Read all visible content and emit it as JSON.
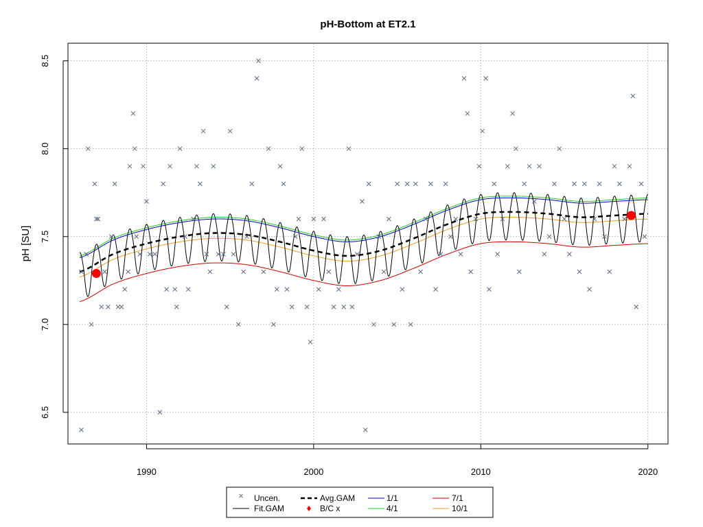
{
  "chart_data": {
    "type": "scatter",
    "title": "pH-Bottom at ET2.1",
    "xlabel": "",
    "ylabel": "pH [SU]",
    "xlim": [
      1985.3,
      2021.2
    ],
    "ylim": [
      6.32,
      8.6
    ],
    "x_ticks": [
      1990,
      2000,
      2010,
      2020
    ],
    "y_ticks": [
      6.5,
      7.0,
      7.5,
      8.0,
      8.5
    ],
    "grid": true,
    "legend_position": "bottom",
    "legend": {
      "uncen": "Uncen.",
      "fit_gam": "Fit.GAM",
      "avg_gam": "Avg.GAM",
      "bc": "B/C x",
      "d1_1": "1/1",
      "d4_1": "4/1",
      "d7_1": "7/1",
      "d10_1": "10/1"
    },
    "colors": {
      "points": "#5a6a82",
      "fit": "#000000",
      "avg": "#000000",
      "bc": "#ff0000",
      "d1_1": "#0000cc",
      "d4_1": "#22cc22",
      "d7_1": "#cc0000",
      "d10_1": "#e8a020",
      "grid": "#c0c0c0"
    },
    "bc_points": [
      {
        "x": 1987.0,
        "y": 7.29
      },
      {
        "x": 2019.0,
        "y": 7.62
      }
    ],
    "avg_gam": {
      "x": [
        1986,
        1988,
        1990,
        1992,
        1994,
        1996,
        1998,
        2000,
        2002,
        2004,
        2006,
        2008,
        2010,
        2012,
        2014,
        2016,
        2018,
        2020
      ],
      "y": [
        7.3,
        7.4,
        7.46,
        7.5,
        7.52,
        7.51,
        7.47,
        7.42,
        7.39,
        7.42,
        7.49,
        7.57,
        7.63,
        7.64,
        7.63,
        7.61,
        7.62,
        7.63
      ]
    },
    "seasonal_offsets": {
      "d4_1": 0.09,
      "d1_1": 0.08,
      "d10_1": -0.03,
      "d7_1": -0.17
    },
    "fit_gam": {
      "amplitude_high": 0.11,
      "amplitude_low": 0.16,
      "cycles_per_year": 1
    },
    "points": [
      [
        1986.1,
        6.4
      ],
      [
        1986.1,
        7.3
      ],
      [
        1986.4,
        7.4
      ],
      [
        1986.5,
        8.0
      ],
      [
        1986.7,
        7.0
      ],
      [
        1986.9,
        7.8
      ],
      [
        1987.0,
        7.6
      ],
      [
        1987.1,
        7.6
      ],
      [
        1987.3,
        7.1
      ],
      [
        1987.5,
        7.3
      ],
      [
        1987.7,
        7.1
      ],
      [
        1987.9,
        7.5
      ],
      [
        1988.1,
        7.8
      ],
      [
        1988.3,
        7.1
      ],
      [
        1988.5,
        7.1
      ],
      [
        1988.7,
        7.2
      ],
      [
        1988.9,
        7.3
      ],
      [
        1989.0,
        7.9
      ],
      [
        1989.2,
        8.2
      ],
      [
        1989.3,
        8.0
      ],
      [
        1989.4,
        7.5
      ],
      [
        1989.6,
        7.4
      ],
      [
        1989.8,
        7.9
      ],
      [
        1990.0,
        7.7
      ],
      [
        1990.2,
        7.4
      ],
      [
        1990.5,
        7.4
      ],
      [
        1990.8,
        6.5
      ],
      [
        1991.0,
        7.8
      ],
      [
        1991.2,
        7.2
      ],
      [
        1991.4,
        7.9
      ],
      [
        1991.7,
        7.2
      ],
      [
        1991.8,
        7.1
      ],
      [
        1992.0,
        8.0
      ],
      [
        1992.3,
        7.5
      ],
      [
        1992.5,
        7.2
      ],
      [
        1992.8,
        7.6
      ],
      [
        1993.0,
        7.9
      ],
      [
        1993.2,
        7.8
      ],
      [
        1993.4,
        8.1
      ],
      [
        1993.6,
        7.4
      ],
      [
        1993.8,
        7.3
      ],
      [
        1994.0,
        7.9
      ],
      [
        1994.3,
        7.4
      ],
      [
        1994.6,
        7.4
      ],
      [
        1994.8,
        7.1
      ],
      [
        1995.0,
        8.1
      ],
      [
        1995.2,
        7.4
      ],
      [
        1995.5,
        7.0
      ],
      [
        1995.8,
        7.3
      ],
      [
        1996.0,
        7.5
      ],
      [
        1996.3,
        7.8
      ],
      [
        1996.6,
        8.4
      ],
      [
        1996.7,
        8.5
      ],
      [
        1997.0,
        7.3
      ],
      [
        1997.3,
        8.0
      ],
      [
        1997.6,
        7.0
      ],
      [
        1997.8,
        7.2
      ],
      [
        1998.0,
        7.9
      ],
      [
        1998.2,
        7.8
      ],
      [
        1998.4,
        7.2
      ],
      [
        1998.7,
        7.1
      ],
      [
        1998.9,
        7.5
      ],
      [
        1999.1,
        7.6
      ],
      [
        1999.3,
        8.0
      ],
      [
        1999.6,
        7.1
      ],
      [
        1999.8,
        6.9
      ],
      [
        2000.0,
        7.6
      ],
      [
        2000.3,
        7.2
      ],
      [
        2000.6,
        7.6
      ],
      [
        2000.9,
        7.3
      ],
      [
        2001.2,
        7.1
      ],
      [
        2001.5,
        7.2
      ],
      [
        2001.8,
        7.1
      ],
      [
        2002.1,
        8.0
      ],
      [
        2002.3,
        7.1
      ],
      [
        2002.6,
        7.4
      ],
      [
        2002.9,
        7.7
      ],
      [
        2003.1,
        6.4
      ],
      [
        2003.3,
        7.8
      ],
      [
        2003.6,
        7.0
      ],
      [
        2003.9,
        7.5
      ],
      [
        2004.2,
        7.3
      ],
      [
        2004.5,
        7.6
      ],
      [
        2004.8,
        7.0
      ],
      [
        2005.0,
        7.8
      ],
      [
        2005.3,
        7.2
      ],
      [
        2005.6,
        7.8
      ],
      [
        2005.8,
        7.0
      ],
      [
        2006.1,
        7.8
      ],
      [
        2006.4,
        7.3
      ],
      [
        2006.7,
        7.6
      ],
      [
        2007.0,
        7.8
      ],
      [
        2007.3,
        7.2
      ],
      [
        2007.6,
        7.4
      ],
      [
        2007.9,
        7.8
      ],
      [
        2008.2,
        7.5
      ],
      [
        2008.5,
        7.6
      ],
      [
        2008.8,
        7.4
      ],
      [
        2009.0,
        8.4
      ],
      [
        2009.2,
        8.2
      ],
      [
        2009.4,
        7.3
      ],
      [
        2009.7,
        7.6
      ],
      [
        2009.9,
        7.9
      ],
      [
        2010.1,
        8.1
      ],
      [
        2010.3,
        8.4
      ],
      [
        2010.5,
        7.2
      ],
      [
        2010.8,
        7.8
      ],
      [
        2011.0,
        7.4
      ],
      [
        2011.3,
        7.6
      ],
      [
        2011.6,
        7.9
      ],
      [
        2011.9,
        8.2
      ],
      [
        2012.1,
        8.0
      ],
      [
        2012.3,
        7.3
      ],
      [
        2012.6,
        7.8
      ],
      [
        2012.9,
        7.9
      ],
      [
        2013.2,
        7.7
      ],
      [
        2013.5,
        7.9
      ],
      [
        2013.8,
        7.4
      ],
      [
        2014.1,
        7.5
      ],
      [
        2014.4,
        7.8
      ],
      [
        2014.7,
        8.0
      ],
      [
        2015.0,
        7.6
      ],
      [
        2015.3,
        7.4
      ],
      [
        2015.6,
        7.8
      ],
      [
        2015.9,
        7.3
      ],
      [
        2016.2,
        7.8
      ],
      [
        2016.5,
        7.2
      ],
      [
        2016.8,
        7.6
      ],
      [
        2017.1,
        7.8
      ],
      [
        2017.4,
        7.5
      ],
      [
        2017.7,
        7.3
      ],
      [
        2018.0,
        7.9
      ],
      [
        2018.3,
        7.8
      ],
      [
        2018.6,
        7.6
      ],
      [
        2018.9,
        7.9
      ],
      [
        2019.1,
        8.3
      ],
      [
        2019.3,
        7.1
      ],
      [
        2019.6,
        7.8
      ],
      [
        2019.8,
        7.5
      ]
    ]
  }
}
